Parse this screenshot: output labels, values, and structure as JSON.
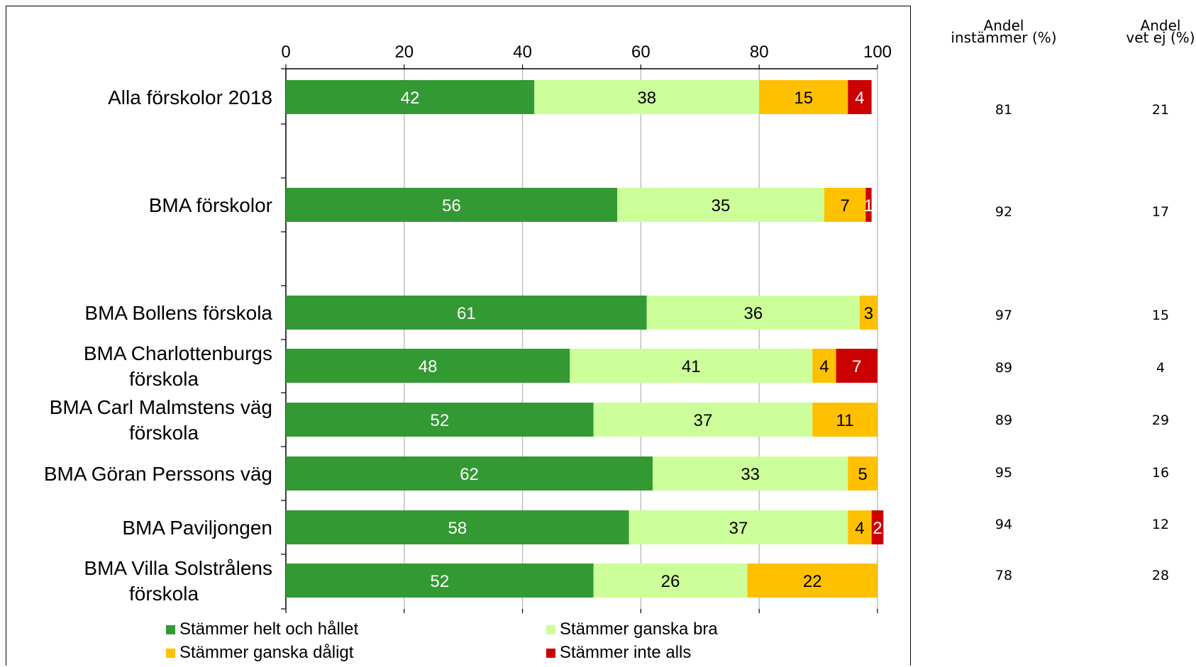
{
  "chart_data": {
    "type": "bar",
    "orientation": "horizontal",
    "stacked": true,
    "categories": [
      "Alla förskolor 2018",
      "BMA förskolor",
      "BMA Bollens förskola",
      "BMA Charlottenburgs förskola",
      "BMA Carl Malmstens väg förskola",
      "BMA Göran Perssons väg",
      "BMA Paviljongen",
      "BMA Villa Solstrålens förskola"
    ],
    "category_lines": [
      [
        "Alla förskolor 2018"
      ],
      [
        "BMA förskolor"
      ],
      [
        "BMA Bollens förskola"
      ],
      [
        "BMA Charlottenburgs",
        "förskola"
      ],
      [
        "BMA Carl Malmstens väg",
        "förskola"
      ],
      [
        "BMA Göran Perssons väg"
      ],
      [
        "BMA Paviljongen"
      ],
      [
        "BMA Villa Solstrålens",
        "förskola"
      ]
    ],
    "series": [
      {
        "name": "Stämmer helt och hållet",
        "color": "#339933",
        "label_color": "#ffffff",
        "values": [
          42,
          56,
          61,
          48,
          52,
          62,
          58,
          52
        ],
        "labels": [
          "42",
          "56",
          "61",
          "48",
          "52",
          "62",
          "58",
          "52"
        ]
      },
      {
        "name": "Stämmer ganska bra",
        "color": "#ccff99",
        "label_color": "#000000",
        "values": [
          38,
          35,
          36,
          41,
          37,
          33,
          37,
          26
        ],
        "labels": [
          "38",
          "35",
          "36",
          "41",
          "37",
          "33",
          "37",
          "26"
        ]
      },
      {
        "name": "Stämmer ganska dåligt",
        "color": "#ffc000",
        "label_color": "#000000",
        "values": [
          15,
          7,
          3,
          4,
          11,
          5,
          4,
          22
        ],
        "labels": [
          "15",
          "7",
          "3",
          "4",
          "11",
          "5",
          "4",
          "22"
        ]
      },
      {
        "name": "Stämmer inte alls",
        "color": "#cc0000",
        "label_color": "#ffffff",
        "values": [
          4,
          1,
          0,
          7,
          0,
          0,
          2,
          0
        ],
        "labels": [
          "4",
          "1",
          "",
          "7",
          "",
          "",
          "2",
          ""
        ]
      }
    ],
    "xlim": [
      0,
      100
    ],
    "xticks": [
      "0",
      "20",
      "40",
      "60",
      "80",
      "100"
    ],
    "xaxis_position": "top",
    "grid": true,
    "legend_position": "bottom"
  },
  "side_table": {
    "columns": [
      {
        "header_lines": [
          "Andel",
          "instämmer (%)"
        ],
        "values": [
          "81",
          "92",
          "97",
          "89",
          "89",
          "95",
          "94",
          "78"
        ]
      },
      {
        "header_lines": [
          "Andel",
          "vet ej (%)"
        ],
        "values": [
          "21",
          "17",
          "15",
          "4",
          "29",
          "16",
          "12",
          "28"
        ]
      }
    ]
  }
}
